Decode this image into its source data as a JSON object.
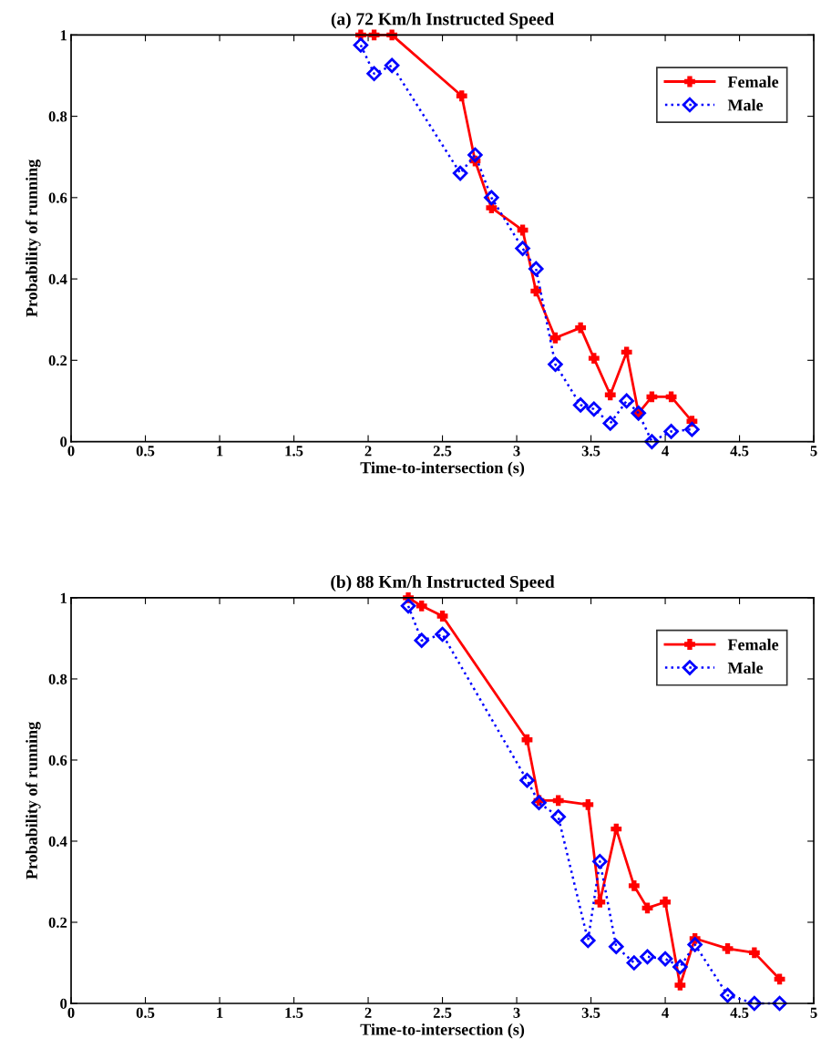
{
  "chart_data": [
    {
      "type": "line",
      "title": "(a) 72 Km/h Instructed Speed",
      "xlabel": "Time-to-intersection (s)",
      "ylabel": "Probability of running",
      "xlim": [
        0,
        5
      ],
      "ylim": [
        0,
        1
      ],
      "xticks": [
        0,
        0.5,
        1,
        1.5,
        2,
        2.5,
        3,
        3.5,
        4,
        4.5,
        5
      ],
      "yticks": [
        0,
        0.2,
        0.4,
        0.6,
        0.8,
        1
      ],
      "grid": false,
      "legend": "top right",
      "series": [
        {
          "name": "Female",
          "color": "#ff0000",
          "marker": "cross",
          "line_style": "solid",
          "x": [
            1.95,
            2.04,
            2.16,
            2.63,
            2.72,
            2.83,
            3.04,
            3.13,
            3.26,
            3.43,
            3.52,
            3.63,
            3.74,
            3.82,
            3.91,
            4.04,
            4.18
          ],
          "values": [
            1.0,
            1.0,
            1.0,
            0.85,
            0.69,
            0.575,
            0.52,
            0.37,
            0.255,
            0.28,
            0.205,
            0.115,
            0.22,
            0.07,
            0.11,
            0.11,
            0.05
          ]
        },
        {
          "name": "Male",
          "color": "#0000ff",
          "marker": "diamond",
          "line_style": "dotted",
          "x": [
            1.95,
            2.04,
            2.16,
            2.62,
            2.72,
            2.83,
            3.04,
            3.13,
            3.26,
            3.43,
            3.52,
            3.63,
            3.74,
            3.82,
            3.91,
            4.04,
            4.18
          ],
          "values": [
            0.975,
            0.905,
            0.925,
            0.66,
            0.705,
            0.6,
            0.475,
            0.425,
            0.19,
            0.09,
            0.08,
            0.045,
            0.1,
            0.07,
            0.0,
            0.025,
            0.03
          ]
        }
      ]
    },
    {
      "type": "line",
      "title": "(b) 88 Km/h Instructed Speed",
      "xlabel": "Time-to-intersection (s)",
      "ylabel": "Probability of running",
      "xlim": [
        0,
        5
      ],
      "ylim": [
        0,
        1
      ],
      "xticks": [
        0,
        0.5,
        1,
        1.5,
        2,
        2.5,
        3,
        3.5,
        4,
        4.5,
        5
      ],
      "yticks": [
        0,
        0.2,
        0.4,
        0.6,
        0.8,
        1
      ],
      "grid": false,
      "legend": "top right",
      "series": [
        {
          "name": "Female",
          "color": "#ff0000",
          "marker": "cross",
          "line_style": "solid",
          "x": [
            2.27,
            2.36,
            2.5,
            3.07,
            3.15,
            3.28,
            3.48,
            3.56,
            3.67,
            3.79,
            3.88,
            4.0,
            4.1,
            4.2,
            4.42,
            4.6,
            4.77
          ],
          "values": [
            1.0,
            0.98,
            0.955,
            0.65,
            0.5,
            0.5,
            0.49,
            0.25,
            0.43,
            0.29,
            0.235,
            0.25,
            0.045,
            0.16,
            0.135,
            0.125,
            0.06
          ]
        },
        {
          "name": "Male",
          "color": "#0000ff",
          "marker": "diamond",
          "line_style": "dotted",
          "x": [
            2.27,
            2.36,
            2.5,
            3.07,
            3.15,
            3.28,
            3.48,
            3.56,
            3.67,
            3.79,
            3.88,
            4.0,
            4.1,
            4.2,
            4.42,
            4.6,
            4.77
          ],
          "values": [
            0.98,
            0.895,
            0.91,
            0.55,
            0.495,
            0.46,
            0.155,
            0.35,
            0.14,
            0.1,
            0.115,
            0.11,
            0.09,
            0.145,
            0.02,
            0.0,
            0.0
          ]
        }
      ]
    }
  ]
}
